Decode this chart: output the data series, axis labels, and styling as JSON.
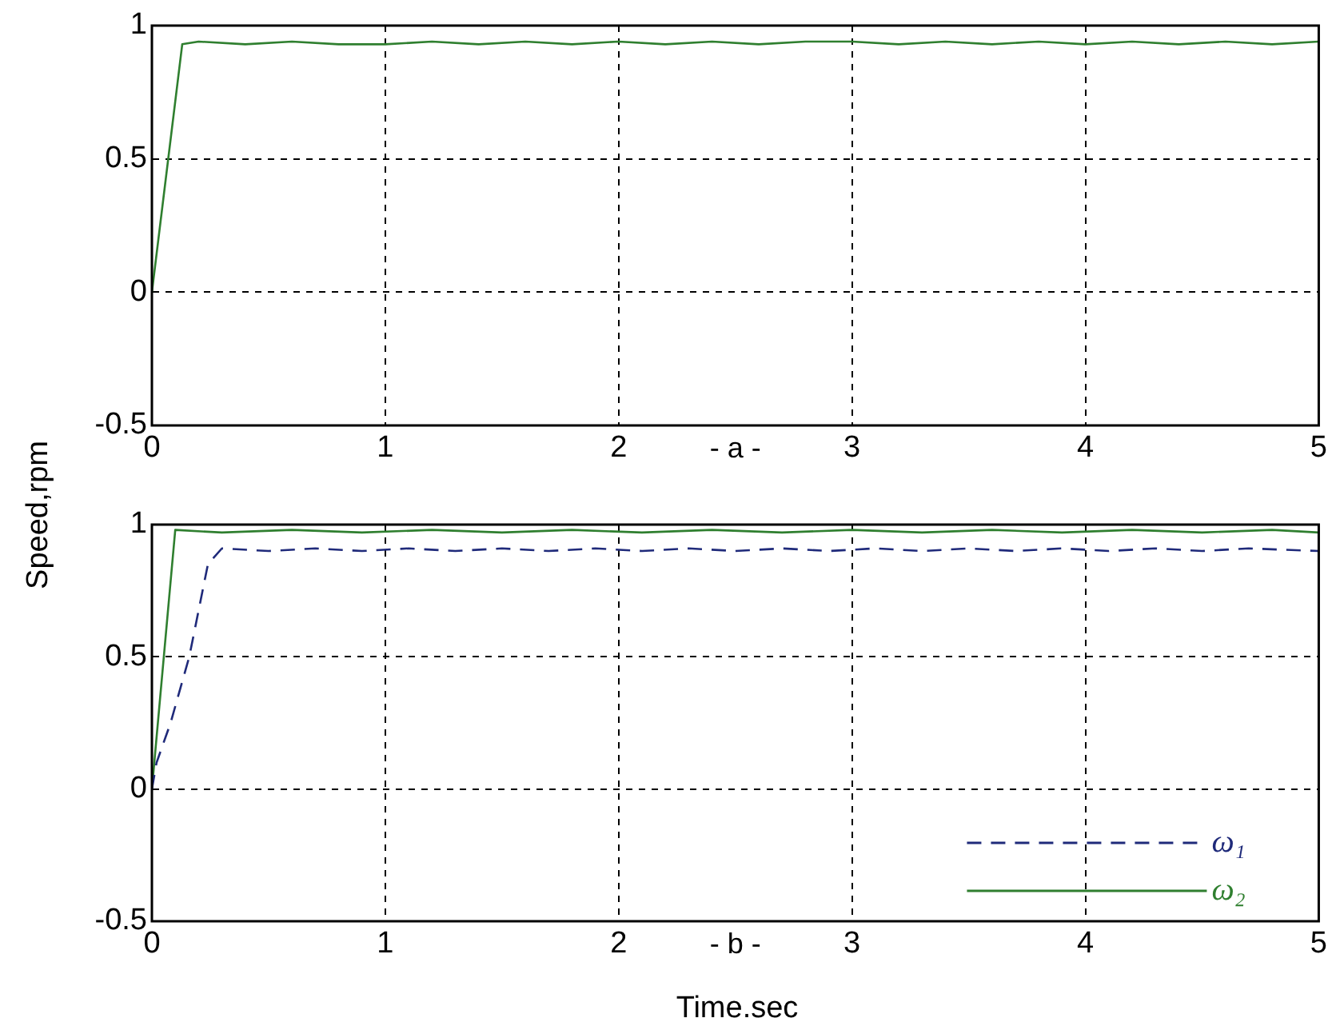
{
  "chart_data": [
    {
      "type": "line",
      "ylabel": "Speed,rpm",
      "annotations": [
        "- a -"
      ],
      "grid": true,
      "xlim": [
        0,
        5
      ],
      "xticks": [
        0,
        1,
        2,
        3,
        4,
        5
      ],
      "ylim": [
        -0.5,
        1
      ],
      "yticks": [
        -0.5,
        0,
        0.5,
        1
      ],
      "series": [
        {
          "color": "#2f7f2f",
          "line_style": "solid",
          "x": [
            0,
            0.13,
            0.2,
            0.4,
            0.6,
            0.8,
            1,
            1.2,
            1.4,
            1.6,
            1.8,
            2,
            2.2,
            2.4,
            2.6,
            2.8,
            3,
            3.2,
            3.4,
            3.6,
            3.8,
            4,
            4.2,
            4.4,
            4.6,
            4.8,
            5
          ],
          "values": [
            0,
            0.93,
            0.94,
            0.93,
            0.94,
            0.93,
            0.93,
            0.94,
            0.93,
            0.94,
            0.93,
            0.94,
            0.93,
            0.94,
            0.93,
            0.94,
            0.94,
            0.93,
            0.94,
            0.93,
            0.94,
            0.93,
            0.94,
            0.93,
            0.94,
            0.93,
            0.94
          ]
        }
      ]
    },
    {
      "type": "line",
      "xlabel": "Time.sec",
      "annotations": [
        "- b -"
      ],
      "grid": true,
      "legend": "bottom right",
      "xlim": [
        0,
        5
      ],
      "xticks": [
        0,
        1,
        2,
        3,
        4,
        5
      ],
      "ylim": [
        -0.5,
        1
      ],
      "yticks": [
        -0.5,
        0,
        0.5,
        1
      ],
      "series": [
        {
          "name": "ω₁",
          "color": "#1f2a7a",
          "line_style": "dashed",
          "x": [
            0,
            0.02,
            0.08,
            0.16,
            0.24,
            0.3,
            0.5,
            0.7,
            0.9,
            1.1,
            1.3,
            1.5,
            1.7,
            1.9,
            2.1,
            2.3,
            2.5,
            2.7,
            2.9,
            3.1,
            3.3,
            3.5,
            3.7,
            3.9,
            4.1,
            4.3,
            4.5,
            4.7,
            5
          ],
          "values": [
            0,
            0.1,
            0.25,
            0.5,
            0.85,
            0.91,
            0.9,
            0.91,
            0.9,
            0.91,
            0.9,
            0.91,
            0.9,
            0.91,
            0.9,
            0.91,
            0.9,
            0.91,
            0.9,
            0.91,
            0.9,
            0.91,
            0.9,
            0.91,
            0.9,
            0.91,
            0.9,
            0.91,
            0.9
          ]
        },
        {
          "name": "ω₂",
          "color": "#2f7f2f",
          "line_style": "solid",
          "x": [
            0,
            0.1,
            0.3,
            0.6,
            0.9,
            1.2,
            1.5,
            1.8,
            2.1,
            2.4,
            2.7,
            3,
            3.3,
            3.6,
            3.9,
            4.2,
            4.5,
            4.8,
            5
          ],
          "values": [
            0,
            0.98,
            0.97,
            0.98,
            0.97,
            0.98,
            0.97,
            0.98,
            0.97,
            0.98,
            0.97,
            0.98,
            0.97,
            0.98,
            0.97,
            0.98,
            0.97,
            0.98,
            0.97
          ]
        }
      ]
    }
  ]
}
